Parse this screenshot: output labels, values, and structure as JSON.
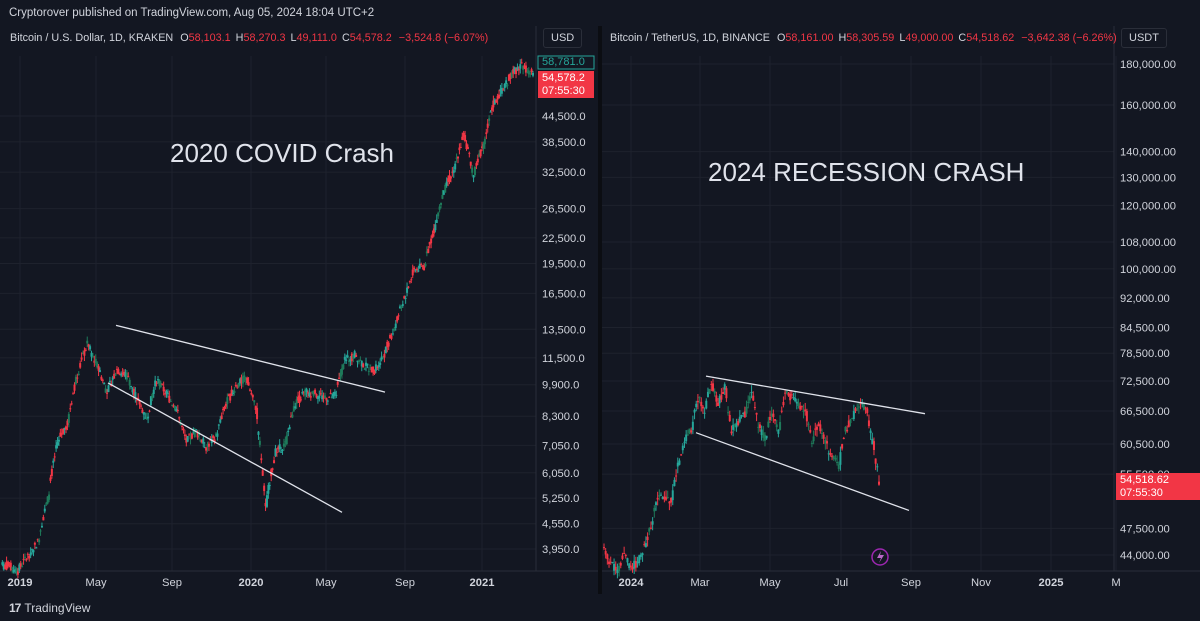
{
  "publish_line": "Cryptorover published on TradingView.com, Aug 05, 2024 18:04 UTC+2",
  "branding": {
    "logo_mark": "17",
    "logo_text": "TradingView"
  },
  "colors": {
    "bg": "#131722",
    "up": "#26a69a",
    "up_dark": "#1e7a5a",
    "down": "#f23645",
    "grid": "#1e222d",
    "text": "#d1d4dc",
    "line": "#e0e3eb"
  },
  "chart_data": [
    {
      "type": "candlestick",
      "pane": "left",
      "symbol": "Bitcoin / U.S. Dollar, 1D, KRAKEN",
      "ohlc": {
        "o_label": "O",
        "open": "58,103.1",
        "h_label": "H",
        "high": "58,270.3",
        "l_label": "L",
        "low": "49,111.0",
        "c_label": "C",
        "close": "54,578.2",
        "change": "−3,524.8 (−6.07%)"
      },
      "currency": "USD",
      "annotation": "2020 COVID Crash",
      "y_scale": "log",
      "y_ticks": [
        "44,500.0",
        "38,500.0",
        "32,500.0",
        "26,500.0",
        "22,500.0",
        "19,500.0",
        "16,500.0",
        "13,500.0",
        "11,500.0",
        "9,900.0",
        "8,300.0",
        "7,050.0",
        "6,050.0",
        "5,250.0",
        "4,550.0",
        "3,950.0"
      ],
      "x_ticks": [
        "2019",
        "May",
        "Sep",
        "2020",
        "May",
        "Sep",
        "2021"
      ],
      "price_labels": {
        "high_marker": "58,781.0",
        "last_price": "54,578.2",
        "countdown": "07:55:30"
      },
      "series": [
        {
          "values": [
            3600,
            3500,
            3800,
            4100,
            5200,
            7200,
            8000,
            10500,
            12400,
            11000,
            9500,
            10800,
            10400,
            9200,
            8200,
            10200,
            9400,
            8600,
            7200,
            7600,
            7000,
            7400,
            8900,
            9800,
            10300,
            8700,
            5000,
            6800,
            7100,
            8900,
            9500,
            9400,
            9200,
            9300,
            11300,
            11700,
            11000,
            10700,
            11800,
            13600,
            16000,
            18800,
            19200,
            23500,
            29000,
            33000,
            40000,
            32000,
            38000,
            47500,
            52000,
            57000,
            59000,
            56000
          ]
        }
      ],
      "trendlines": [
        {
          "from": [
            "2019-06",
            13800
          ],
          "to": [
            "2020-07",
            9500
          ]
        },
        {
          "from": [
            "2019-03",
            10000
          ],
          "to": [
            "2020-05",
            4850
          ]
        }
      ]
    },
    {
      "type": "candlestick",
      "pane": "right",
      "symbol": "Bitcoin / TetherUS, 1D, BINANCE",
      "ohlc": {
        "o_label": "O",
        "open": "58,161.00",
        "h_label": "H",
        "high": "58,305.59",
        "l_label": "L",
        "low": "49,000.00",
        "c_label": "C",
        "close": "54,518.62",
        "change": "−3,642.38 (−6.26%)"
      },
      "currency": "USDT",
      "annotation": "2024 RECESSION CRASH",
      "y_scale": "log",
      "y_ticks": [
        "180,000.00",
        "160,000.00",
        "140,000.00",
        "130,000.00",
        "120,000.00",
        "108,000.00",
        "100,000.00",
        "92,000.00",
        "84,500.00",
        "78,500.00",
        "72,500.00",
        "66,500.00",
        "60,500.00",
        "55,500.00",
        "47,500.00",
        "44,000.00"
      ],
      "x_ticks": [
        "2024",
        "Mar",
        "May",
        "Jul",
        "Sep",
        "Nov",
        "2025",
        "M"
      ],
      "price_labels": {
        "last_price": "54,518.62",
        "countdown": "07:55:30"
      },
      "series": [
        {
          "values": [
            44500,
            43000,
            42000,
            44000,
            42500,
            43000,
            45000,
            48000,
            52000,
            52000,
            51500,
            57000,
            61000,
            63000,
            69000,
            67000,
            72000,
            68000,
            71000,
            63000,
            64500,
            66000,
            69500,
            64000,
            61500,
            66000,
            63000,
            70000,
            69000,
            67500,
            66500,
            61000,
            64000,
            61000,
            58000,
            57000,
            63000,
            65000,
            68000,
            67000,
            61000,
            54500
          ]
        }
      ],
      "trendlines": [
        {
          "from": [
            "2024-03-04",
            73500
          ],
          "to": [
            "2024-09-10",
            66000
          ]
        },
        {
          "from": [
            "2024-02-28",
            62500
          ],
          "to": [
            "2024-09-05",
            50000
          ]
        }
      ]
    }
  ]
}
